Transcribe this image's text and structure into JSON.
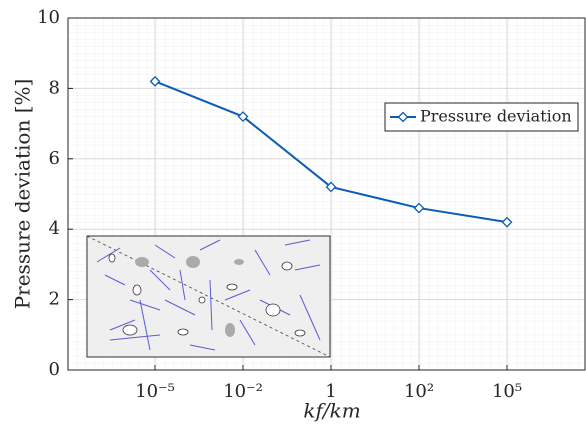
{
  "chart_data": {
    "type": "line",
    "ylabel": "Pressure deviation [%]",
    "xlabel": "kf/km",
    "categories": [
      "10⁻⁵",
      "10⁻²",
      "1",
      "10²",
      "10⁵"
    ],
    "series": [
      {
        "name": "Pressure deviation",
        "color": "#0b5cb5",
        "values": [
          8.2,
          7.2,
          5.2,
          4.6,
          4.2
        ]
      }
    ],
    "ylim": [
      0,
      10
    ],
    "yticks": [
      0,
      2,
      4,
      6,
      8,
      10
    ],
    "grid": true,
    "legend": "upper right"
  }
}
